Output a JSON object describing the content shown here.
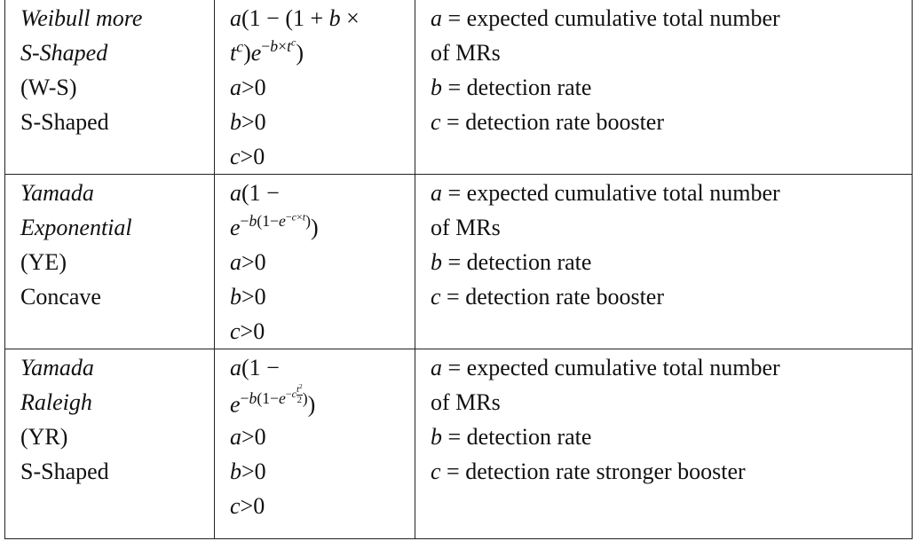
{
  "table": {
    "rows": [
      [
        [
          [
            {
              "i": "Weibull more"
            }
          ],
          [
            {
              "i": "S-Shaped"
            }
          ],
          [
            "(W-S)"
          ],
          [
            "S-Shaped"
          ]
        ],
        [
          [
            {
              "i": "a"
            },
            "(1 − (1 + ",
            {
              "i": "b"
            },
            " ×"
          ],
          [
            {
              "i": "t"
            },
            {
              "sup": [
                {
                  "i": "c"
                }
              ]
            },
            ")",
            {
              "i": "e"
            },
            {
              "sup": [
                "−",
                {
                  "i": "b"
                },
                "×",
                {
                  "i": "t"
                },
                {
                  "sup": [
                    {
                      "i": "c"
                    }
                  ]
                }
              ]
            },
            ")"
          ],
          [
            {
              "i": "a"
            },
            ">0"
          ],
          [
            {
              "i": "b"
            },
            ">0"
          ],
          [
            {
              "i": "c"
            },
            ">0"
          ]
        ],
        [
          [
            {
              "i": "a"
            },
            " = expected cumulative total number"
          ],
          [
            "of MRs"
          ],
          [
            {
              "i": "b"
            },
            " = detection rate"
          ],
          [
            {
              "i": "c"
            },
            " = detection rate booster"
          ]
        ]
      ],
      [
        [
          [
            {
              "i": "Yamada"
            }
          ],
          [
            {
              "i": "Exponential"
            }
          ],
          [
            "(YE)"
          ],
          [
            "Concave"
          ]
        ],
        [
          [
            {
              "i": "a"
            },
            "(1 −"
          ],
          [
            {
              "i": "e"
            },
            {
              "sup": [
                "−",
                {
                  "i": "b"
                },
                "(1−",
                {
                  "i": "e"
                },
                {
                  "sup": [
                    "−",
                    {
                      "i": "c"
                    },
                    "×",
                    {
                      "i": "t"
                    }
                  ]
                },
                ")"
              ]
            },
            ")"
          ],
          [
            {
              "i": "a"
            },
            ">0"
          ],
          [
            {
              "i": "b"
            },
            ">0"
          ],
          [
            {
              "i": "c"
            },
            ">0"
          ]
        ],
        [
          [
            {
              "i": "a"
            },
            " = expected cumulative total number"
          ],
          [
            "of MRs"
          ],
          [
            {
              "i": "b"
            },
            " = detection rate"
          ],
          [
            {
              "i": "c"
            },
            " = detection rate booster"
          ]
        ]
      ],
      [
        [
          [
            {
              "i": "Yamada"
            }
          ],
          [
            {
              "i": "Raleigh"
            }
          ],
          [
            "(YR)"
          ],
          [
            "S-Shaped"
          ]
        ],
        [
          [
            {
              "i": "a"
            },
            "(1 −"
          ],
          [
            {
              "i": "e"
            },
            {
              "sup": [
                "−",
                {
                  "i": "b"
                },
                "(1−",
                {
                  "i": "e"
                },
                {
                  "sup": [
                    "−",
                    {
                      "i": "c"
                    },
                    {
                      "frac": [
                        [
                          {
                            "i": "t"
                          },
                          {
                            "sup": [
                              "2"
                            ]
                          }
                        ],
                        [
                          "2"
                        ]
                      ]
                    }
                  ]
                },
                ")"
              ]
            },
            ")"
          ],
          [
            {
              "i": "a"
            },
            ">0"
          ],
          [
            {
              "i": "b"
            },
            ">0"
          ],
          [
            {
              "i": "c"
            },
            ">0"
          ]
        ],
        [
          [
            {
              "i": "a"
            },
            " = expected cumulative total number"
          ],
          [
            "of MRs"
          ],
          [
            {
              "i": "b"
            },
            " = detection rate"
          ],
          [
            {
              "i": "c"
            },
            " = detection rate stronger booster"
          ]
        ]
      ]
    ]
  }
}
